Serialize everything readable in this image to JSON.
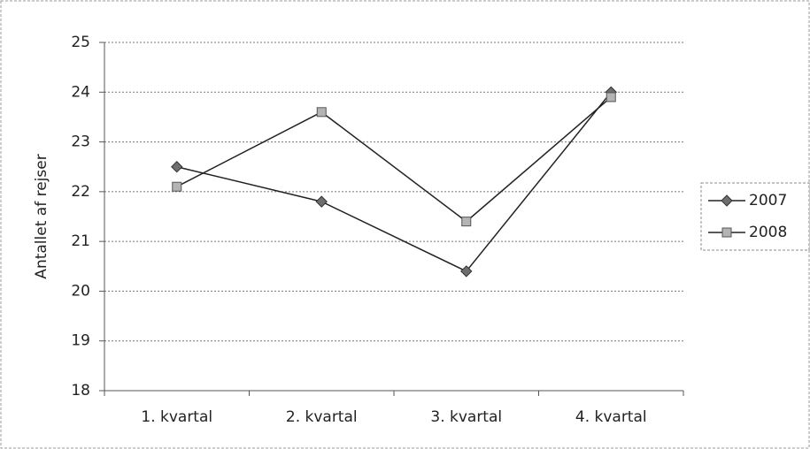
{
  "chart_data": {
    "type": "line",
    "y_label": "Antallet af rejser",
    "categories": [
      "1. kvartal",
      "2. kvartal",
      "3. kvartal",
      "4. kvartal"
    ],
    "series": [
      {
        "name": "2007",
        "color": "#6e6e6e",
        "marker": "diamond",
        "values": [
          22.5,
          21.8,
          20.4,
          24.0
        ]
      },
      {
        "name": "2008",
        "color": "#b4b4b4",
        "marker": "square",
        "values": [
          22.1,
          23.6,
          21.4,
          23.9
        ]
      }
    ],
    "ylim": [
      18,
      25
    ],
    "yticks": [
      18,
      19,
      20,
      21,
      22,
      23,
      24,
      25
    ],
    "grid": true,
    "legend": "right"
  }
}
